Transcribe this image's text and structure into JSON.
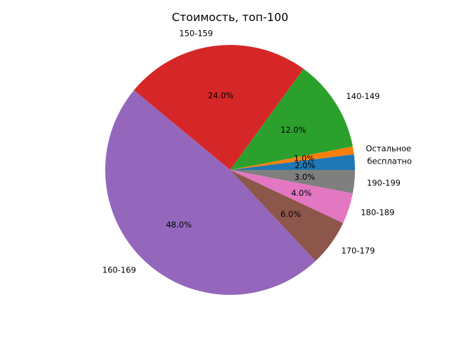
{
  "chart_data": {
    "type": "pie",
    "title": "Стоимость, топ-100",
    "categories": [
      "бесплатно",
      "Остальное",
      "140-149",
      "150-159",
      "160-169",
      "170-179",
      "180-189",
      "190-199"
    ],
    "values": [
      2.0,
      1.0,
      12.0,
      24.0,
      48.0,
      6.0,
      4.0,
      3.0
    ],
    "percent_labels": [
      "2.0%",
      "1.0%",
      "12.0%",
      "24.0%",
      "48.0%",
      "6.0%",
      "4.0%",
      "3.0%"
    ],
    "colors": [
      "#1f77b4",
      "#ff7f0e",
      "#2ca02c",
      "#d62728",
      "#9467bd",
      "#8c564b",
      "#e377c2",
      "#7f7f7f"
    ],
    "start_angle_degrees": 0,
    "direction": "counterclockwise"
  }
}
